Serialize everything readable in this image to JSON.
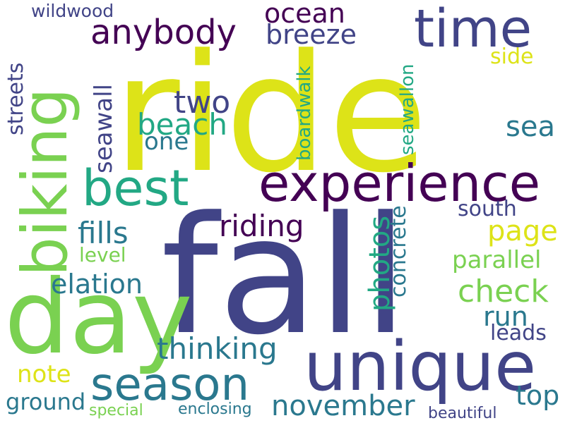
{
  "palette": {
    "yellow": "#dde318",
    "lime": "#7ad151",
    "green": "#22a884",
    "teal": "#2a788e",
    "blue": "#414487",
    "purple": "#440154"
  },
  "words": {
    "ride": "ride",
    "fall": "fall",
    "day": "day",
    "unique": "unique",
    "biking": "biking",
    "experience": "experience",
    "time": "time",
    "best": "best",
    "season": "season",
    "anybody": "anybody",
    "ocean": "ocean",
    "breeze": "breeze",
    "wildwood": "wildwood",
    "two": "two",
    "beach": "beach",
    "one": "one",
    "sea": "sea",
    "side": "side",
    "streets": "streets",
    "seawall": "seawall",
    "boardwalk": "boardwalk",
    "seawallon": "seawallon",
    "riding": "riding",
    "fills": "fills",
    "level": "level",
    "elation": "elation",
    "photos": "photos",
    "concrete": "concrete",
    "south": "south",
    "page": "page",
    "parallel": "parallel",
    "check": "check",
    "run": "run",
    "leads": "leads",
    "thinking": "thinking",
    "note": "note",
    "ground": "ground",
    "november": "november",
    "top": "top",
    "special": "special",
    "enclosing": "enclosing",
    "beautiful": "beautiful"
  }
}
